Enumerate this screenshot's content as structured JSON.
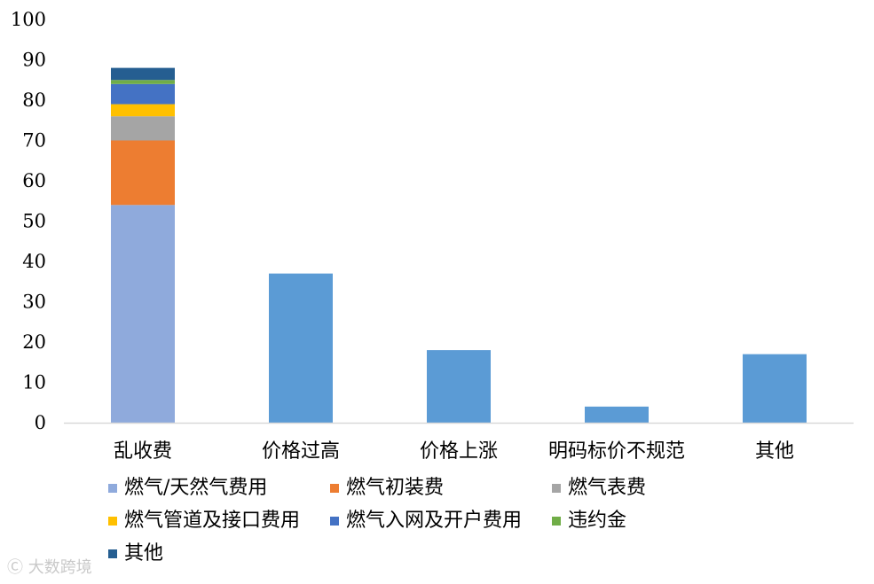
{
  "chart_data": {
    "type": "bar",
    "title": "",
    "xlabel": "",
    "ylabel": "",
    "ylim": [
      0,
      100
    ],
    "yticks": [
      0,
      10,
      20,
      30,
      40,
      50,
      60,
      70,
      80,
      90,
      100
    ],
    "categories": [
      "乱收费",
      "价格过高",
      "价格上涨",
      "明码标价不规范",
      "其他"
    ],
    "stacked": {
      "category": "乱收费",
      "series": [
        {
          "name": "燃气/天然气费用",
          "value": 54,
          "color": "#8FAADC"
        },
        {
          "name": "燃气初装费",
          "value": 16,
          "color": "#ED7D31"
        },
        {
          "name": "燃气表费",
          "value": 6,
          "color": "#A5A5A5"
        },
        {
          "name": "燃气管道及接口费用",
          "value": 3,
          "color": "#FFC000"
        },
        {
          "name": "燃气入网及开户费用",
          "value": 5,
          "color": "#4472C4"
        },
        {
          "name": "违约金",
          "value": 1,
          "color": "#70AD47"
        },
        {
          "name": "其他",
          "value": 3,
          "color": "#255E91"
        }
      ]
    },
    "simple": {
      "color": "#5B9BD5",
      "values": [
        {
          "category": "价格过高",
          "value": 37
        },
        {
          "category": "价格上涨",
          "value": 18
        },
        {
          "category": "明码标价不规范",
          "value": 4
        },
        {
          "category": "其他",
          "value": 17
        }
      ]
    },
    "legend": {
      "position": "bottom",
      "items": [
        {
          "label": "燃气/天然气费用",
          "color": "#8FAADC"
        },
        {
          "label": "燃气初装费",
          "color": "#ED7D31"
        },
        {
          "label": "燃气表费",
          "color": "#A5A5A5"
        },
        {
          "label": "燃气管道及接口费用",
          "color": "#FFC000"
        },
        {
          "label": "燃气入网及开户费用",
          "color": "#4472C4"
        },
        {
          "label": "违约金",
          "color": "#70AD47"
        },
        {
          "label": "其他",
          "color": "#255E91"
        }
      ]
    },
    "grid": false
  },
  "watermark": "大数跨境"
}
